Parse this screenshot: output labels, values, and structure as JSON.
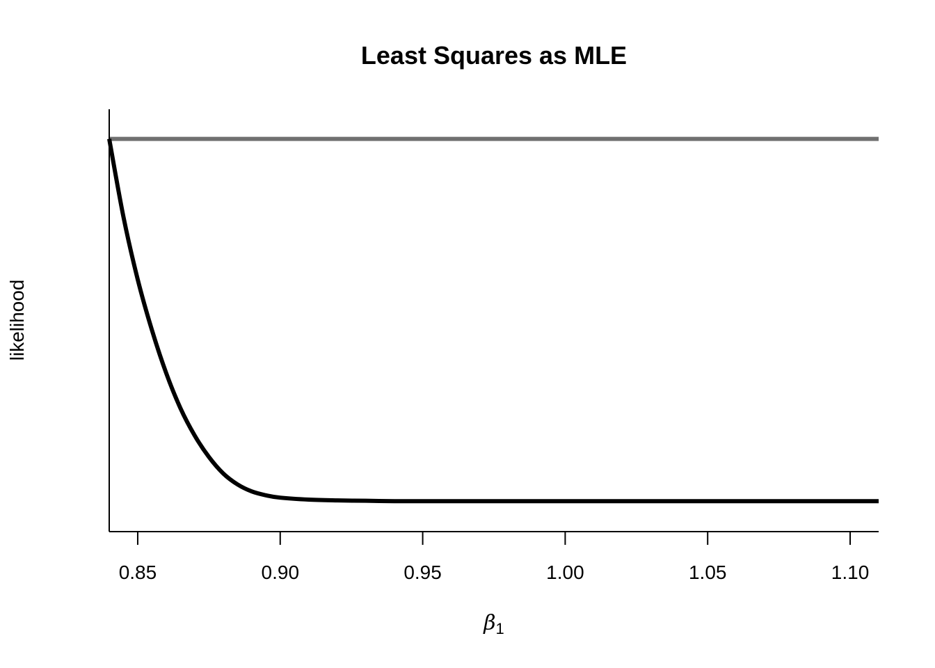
{
  "chart_data": {
    "type": "line",
    "title": "Least Squares as MLE",
    "xlabel": {
      "symbol": "β",
      "subscript": "1"
    },
    "ylabel": "likelihood",
    "xlim": [
      0.84,
      1.11
    ],
    "ylim": [
      0.0,
      1.0
    ],
    "x_ticks": [
      "0.85",
      "0.90",
      "0.95",
      "1.00",
      "1.05",
      "1.10"
    ],
    "x_tick_values": [
      0.85,
      0.9,
      0.95,
      1.0,
      1.05,
      1.1
    ],
    "y_ticks": [],
    "grid": false,
    "series": [
      {
        "color": "#707070",
        "x": [
          0.84,
          1.11
        ],
        "y": [
          0.965,
          0.965
        ]
      },
      {
        "color": "#000000",
        "x": [
          0.84,
          0.845,
          0.85,
          0.855,
          0.86,
          0.865,
          0.87,
          0.875,
          0.88,
          0.885,
          0.89,
          0.895,
          0.9,
          0.91,
          0.92,
          0.93,
          0.94,
          0.95,
          0.97,
          1.0,
          1.05,
          1.11
        ],
        "y": [
          0.965,
          0.765,
          0.605,
          0.475,
          0.365,
          0.275,
          0.205,
          0.15,
          0.108,
          0.08,
          0.062,
          0.052,
          0.046,
          0.041,
          0.039,
          0.038,
          0.037,
          0.037,
          0.037,
          0.037,
          0.037,
          0.037
        ]
      }
    ]
  }
}
